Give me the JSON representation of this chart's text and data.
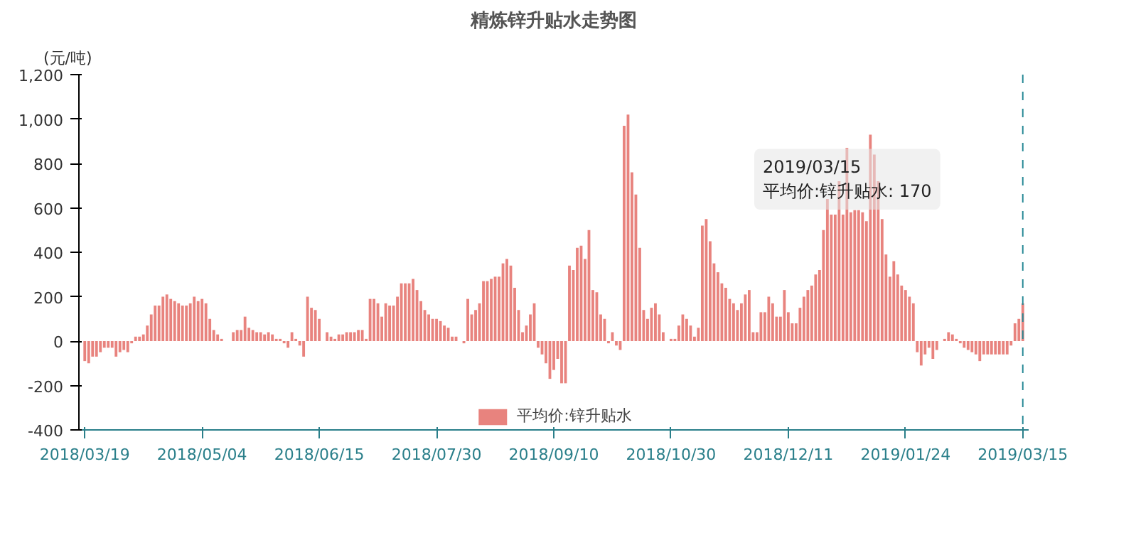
{
  "chart_data": {
    "type": "bar",
    "title": "精炼锌升贴水走势图",
    "ylabel": "(元/吨)",
    "categories": [
      "2018/03/19",
      null,
      null,
      null,
      null,
      null,
      null,
      null,
      null,
      null,
      null,
      null,
      null,
      null,
      null,
      null,
      null,
      null,
      null,
      null,
      null,
      null,
      null,
      null,
      null,
      null,
      null,
      null,
      null,
      null,
      "2018/05/04",
      null,
      null,
      null,
      null,
      null,
      null,
      null,
      null,
      null,
      null,
      null,
      null,
      null,
      null,
      null,
      null,
      null,
      null,
      null,
      null,
      null,
      null,
      null,
      null,
      null,
      null,
      null,
      null,
      null,
      "2018/06/15",
      null,
      null,
      null,
      null,
      null,
      null,
      null,
      null,
      null,
      null,
      null,
      null,
      null,
      null,
      null,
      null,
      null,
      null,
      null,
      null,
      null,
      null,
      null,
      null,
      null,
      null,
      null,
      null,
      null,
      "2018/07/30",
      null,
      null,
      null,
      null,
      null,
      null,
      null,
      null,
      null,
      null,
      null,
      null,
      null,
      null,
      null,
      null,
      null,
      null,
      null,
      null,
      null,
      null,
      null,
      null,
      null,
      null,
      null,
      null,
      null,
      "2018/09/10",
      null,
      null,
      null,
      null,
      null,
      null,
      null,
      null,
      null,
      null,
      null,
      null,
      null,
      null,
      null,
      null,
      null,
      null,
      null,
      null,
      null,
      null,
      null,
      null,
      null,
      null,
      null,
      null,
      null,
      "2018/10/30",
      null,
      null,
      null,
      null,
      null,
      null,
      null,
      null,
      null,
      null,
      null,
      null,
      null,
      null,
      null,
      null,
      null,
      null,
      null,
      null,
      null,
      null,
      null,
      null,
      null,
      null,
      null,
      null,
      null,
      "2018/12/11",
      null,
      null,
      null,
      null,
      null,
      null,
      null,
      null,
      null,
      null,
      null,
      null,
      null,
      null,
      null,
      null,
      null,
      null,
      null,
      null,
      null,
      null,
      null,
      null,
      null,
      null,
      null,
      null,
      null,
      "2019/01/24",
      null,
      null,
      null,
      null,
      null,
      null,
      null,
      null,
      null,
      null,
      null,
      null,
      null,
      null,
      null,
      null,
      null,
      null,
      null,
      null,
      null,
      null,
      null,
      null,
      null,
      null,
      null,
      null,
      null,
      "2019/03/15"
    ],
    "series": [
      {
        "name": "平均价:锌升贴水",
        "color": "#e8837e",
        "values": [
          -90,
          -100,
          -70,
          -70,
          -50,
          -30,
          -30,
          -30,
          -70,
          -50,
          -40,
          -50,
          -10,
          20,
          20,
          30,
          70,
          120,
          160,
          160,
          200,
          210,
          190,
          180,
          170,
          160,
          160,
          170,
          200,
          180,
          190,
          170,
          100,
          50,
          30,
          10,
          0,
          0,
          40,
          50,
          50,
          110,
          60,
          50,
          40,
          40,
          30,
          40,
          30,
          10,
          10,
          -10,
          -30,
          40,
          10,
          -20,
          -70,
          200,
          150,
          140,
          100,
          0,
          40,
          20,
          10,
          30,
          30,
          40,
          40,
          40,
          50,
          50,
          10,
          190,
          190,
          170,
          110,
          170,
          160,
          160,
          200,
          260,
          260,
          260,
          280,
          230,
          180,
          140,
          120,
          100,
          100,
          90,
          70,
          60,
          20,
          20,
          0,
          -10,
          190,
          120,
          140,
          170,
          270,
          270,
          280,
          290,
          290,
          350,
          370,
          340,
          240,
          140,
          40,
          70,
          120,
          170,
          -30,
          -60,
          -100,
          -170,
          -130,
          -80,
          -190,
          -190,
          340,
          320,
          420,
          430,
          370,
          500,
          230,
          220,
          120,
          100,
          -10,
          40,
          -20,
          -40,
          970,
          1020,
          760,
          660,
          420,
          140,
          100,
          150,
          170,
          120,
          40,
          0,
          10,
          10,
          70,
          120,
          100,
          70,
          20,
          60,
          520,
          550,
          450,
          350,
          310,
          260,
          240,
          190,
          170,
          140,
          170,
          210,
          230,
          40,
          40,
          130,
          130,
          200,
          170,
          110,
          110,
          230,
          130,
          80,
          80,
          150,
          200,
          230,
          250,
          300,
          320,
          500,
          640,
          570,
          570,
          720,
          570,
          870,
          580,
          590,
          590,
          580,
          540,
          930,
          840,
          720,
          550,
          390,
          290,
          360,
          300,
          250,
          230,
          200,
          170,
          -50,
          -110,
          -60,
          -30,
          -80,
          -40,
          0,
          10,
          40,
          30,
          10,
          -10,
          -30,
          -40,
          -50,
          -60,
          -90,
          -60,
          -60,
          -60,
          -60,
          -60,
          -60,
          -60,
          -20,
          80,
          100,
          170
        ]
      }
    ],
    "ylim": [
      -400,
      1200
    ],
    "yticks": [
      {
        "value": -400,
        "label": "-400"
      },
      {
        "value": -200,
        "label": "-200"
      },
      0,
      200,
      400,
      600,
      800,
      {
        "value": 1000,
        "label": "1,000"
      },
      {
        "value": 1200,
        "label": "1,200"
      }
    ],
    "grid": false,
    "legend": "bottom",
    "ref_lines": [
      {
        "axis": "x",
        "value": "2019/03/15",
        "color": "#2a8a96",
        "line_style": "dashed"
      }
    ],
    "annotations": [
      "2019/03/15\n平均价:锌升贴水: 170"
    ]
  }
}
